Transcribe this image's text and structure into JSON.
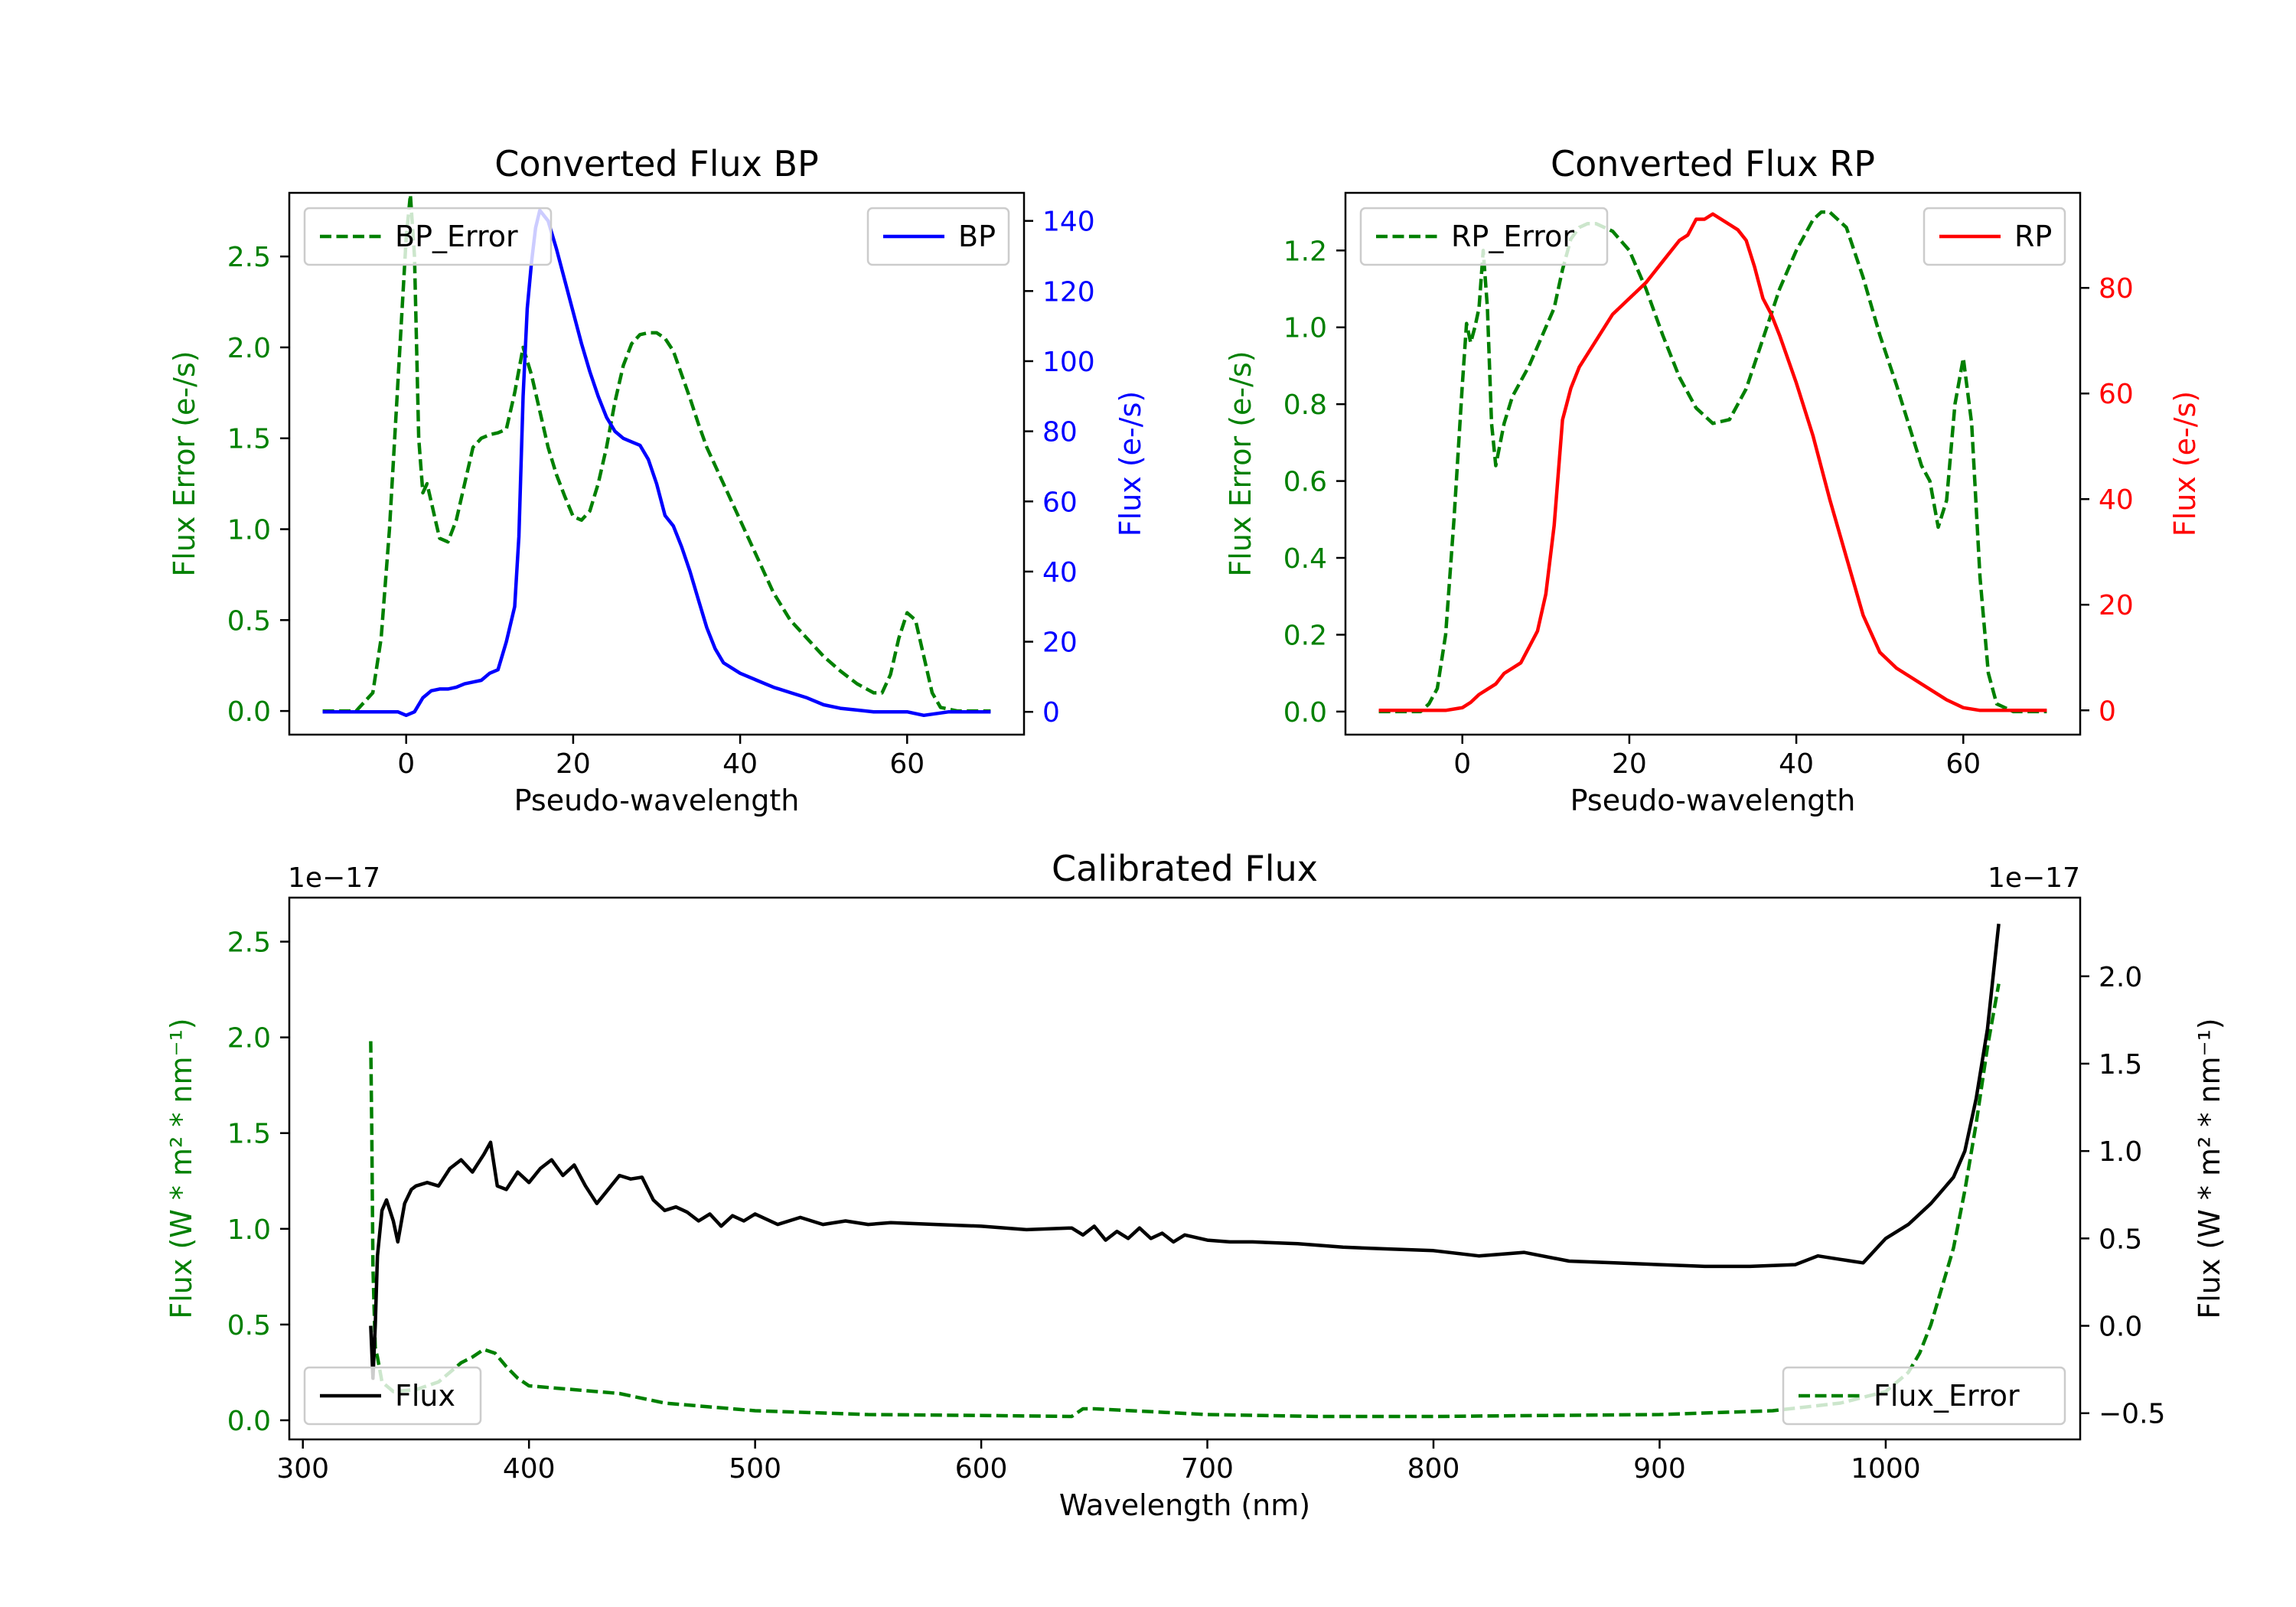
{
  "chart_data": [
    {
      "id": "bp",
      "type": "line",
      "title": "Converted Flux BP",
      "xlabel": "Pseudo-wavelength",
      "ylabel_left": "Flux Error (e-/s)",
      "ylabel_right": "Flux (e-/s)",
      "xlim": [
        -14,
        74
      ],
      "ylim_left": [
        -0.13,
        2.85
      ],
      "ylim_right": [
        -6.5,
        148
      ],
      "xticks": [
        0,
        20,
        40,
        60
      ],
      "yticks_left": [
        "0.0",
        "0.5",
        "1.0",
        "1.5",
        "2.0",
        "2.5"
      ],
      "yticks_right": [
        "0",
        "20",
        "40",
        "60",
        "80",
        "100",
        "120",
        "140"
      ],
      "colors": {
        "left_axis": "#008000",
        "right_axis": "#0000ff"
      },
      "series": [
        {
          "name": "BP_Error",
          "axis": "left",
          "color": "#008000",
          "style": "dashed",
          "x": [
            -10,
            -6,
            -4,
            -3,
            -2,
            -1,
            0,
            0.5,
            1,
            1.5,
            2,
            2.5,
            3,
            3.5,
            4,
            5,
            6,
            7,
            8,
            9,
            10,
            11,
            12,
            13,
            14,
            15,
            16,
            17,
            18,
            19,
            20,
            21,
            22,
            23,
            24,
            25,
            26,
            27,
            28,
            29,
            30,
            31,
            32,
            33,
            34,
            35,
            36,
            38,
            40,
            42,
            44,
            46,
            48,
            50,
            52,
            54,
            56,
            57,
            58,
            59,
            60,
            61,
            62,
            63,
            64,
            66,
            70
          ],
          "values": [
            0.0,
            0.0,
            0.1,
            0.4,
            1.0,
            1.8,
            2.6,
            2.84,
            2.5,
            1.5,
            1.2,
            1.25,
            1.15,
            1.05,
            0.95,
            0.93,
            1.05,
            1.25,
            1.45,
            1.5,
            1.52,
            1.53,
            1.55,
            1.75,
            2.0,
            1.85,
            1.65,
            1.45,
            1.3,
            1.18,
            1.07,
            1.05,
            1.1,
            1.25,
            1.45,
            1.7,
            1.9,
            2.02,
            2.07,
            2.08,
            2.08,
            2.05,
            1.98,
            1.85,
            1.72,
            1.58,
            1.45,
            1.25,
            1.05,
            0.85,
            0.65,
            0.5,
            0.4,
            0.3,
            0.22,
            0.15,
            0.1,
            0.1,
            0.2,
            0.4,
            0.54,
            0.5,
            0.3,
            0.1,
            0.02,
            0.0,
            0.0
          ]
        },
        {
          "name": "BP",
          "axis": "right",
          "color": "#0000ff",
          "style": "solid",
          "x": [
            -10,
            -6,
            -3,
            -1,
            0,
            1,
            2,
            3,
            4,
            5,
            6,
            7,
            8,
            9,
            10,
            11,
            12,
            13,
            13.5,
            14,
            14.5,
            15,
            15.5,
            16,
            17,
            18,
            19,
            20,
            21,
            22,
            23,
            24,
            25,
            26,
            27,
            28,
            29,
            30,
            31,
            32,
            33,
            34,
            35,
            36,
            37,
            38,
            40,
            42,
            44,
            46,
            48,
            50,
            52,
            54,
            56,
            58,
            60,
            62,
            65,
            70
          ],
          "values": [
            0,
            0,
            0,
            0,
            -1,
            0,
            4,
            6,
            6.5,
            6.5,
            7,
            8,
            8.5,
            9,
            11,
            12,
            20,
            30,
            50,
            90,
            115,
            128,
            138,
            143,
            140,
            132,
            123,
            114,
            105,
            97,
            90,
            84,
            80,
            78,
            77,
            76,
            72,
            65,
            56,
            53,
            47,
            40,
            32,
            24,
            18,
            14,
            11,
            9,
            7,
            5.5,
            4,
            2,
            1,
            0.5,
            0,
            0,
            0,
            -1,
            0,
            0
          ]
        }
      ],
      "legends": [
        {
          "name": "BP_Error",
          "location": "upper left"
        },
        {
          "name": "BP",
          "location": "upper right"
        }
      ]
    },
    {
      "id": "rp",
      "type": "line",
      "title": "Converted Flux RP",
      "xlabel": "Pseudo-wavelength",
      "ylabel_left": "Flux Error (e-/s)",
      "ylabel_right": "Flux (e-/s)",
      "xlim": [
        -14,
        74
      ],
      "ylim_left": [
        -0.06,
        1.35
      ],
      "ylim_right": [
        -4.6,
        98
      ],
      "xticks": [
        0,
        20,
        40,
        60
      ],
      "yticks_left": [
        "0.0",
        "0.2",
        "0.4",
        "0.6",
        "0.8",
        "1.0",
        "1.2"
      ],
      "yticks_right": [
        "0",
        "20",
        "40",
        "60",
        "80"
      ],
      "colors": {
        "left_axis": "#008000",
        "right_axis": "#ff0000"
      },
      "series": [
        {
          "name": "RP_Error",
          "axis": "left",
          "color": "#008000",
          "style": "dashed",
          "x": [
            -10,
            -5,
            -4,
            -3,
            -2,
            -1,
            0,
            0.5,
            1,
            1.5,
            2,
            2.5,
            3,
            3.5,
            4,
            5,
            6,
            7,
            8,
            9,
            10,
            11,
            12,
            13,
            14,
            15,
            16,
            17,
            18,
            20,
            22,
            24,
            26,
            28,
            30,
            32,
            34,
            36,
            38,
            40,
            42,
            43,
            44,
            46,
            48,
            50,
            52,
            54,
            55,
            56,
            57,
            58,
            59,
            60,
            61,
            62,
            63,
            64,
            66,
            70
          ],
          "values": [
            0.0,
            0.0,
            0.02,
            0.06,
            0.2,
            0.5,
            0.85,
            1.01,
            0.96,
            1.0,
            1.05,
            1.2,
            1.05,
            0.75,
            0.64,
            0.75,
            0.82,
            0.86,
            0.9,
            0.95,
            1.0,
            1.05,
            1.15,
            1.23,
            1.26,
            1.27,
            1.27,
            1.26,
            1.25,
            1.2,
            1.1,
            0.98,
            0.87,
            0.79,
            0.75,
            0.76,
            0.84,
            0.97,
            1.1,
            1.2,
            1.28,
            1.3,
            1.3,
            1.26,
            1.13,
            0.98,
            0.85,
            0.71,
            0.64,
            0.6,
            0.48,
            0.55,
            0.8,
            0.92,
            0.75,
            0.35,
            0.1,
            0.02,
            0.0,
            0.0
          ]
        },
        {
          "name": "RP",
          "axis": "right",
          "color": "#ff0000",
          "style": "solid",
          "x": [
            -10,
            -5,
            -2,
            0,
            1,
            2,
            3,
            4,
            5,
            6,
            7,
            8,
            9,
            10,
            11,
            12,
            12.5,
            13,
            14,
            16,
            18,
            20,
            22,
            24,
            26,
            27,
            28,
            29,
            30,
            31,
            32,
            33,
            34,
            35,
            36,
            37,
            38,
            40,
            42,
            44,
            46,
            48,
            50,
            52,
            54,
            56,
            58,
            60,
            62,
            65,
            70
          ],
          "values": [
            0,
            0,
            0,
            0.5,
            1.5,
            3,
            4,
            5,
            7,
            8,
            9,
            12,
            15,
            22,
            35,
            55,
            58,
            61,
            65,
            70,
            75,
            78,
            81,
            85,
            89,
            90,
            93,
            93,
            94,
            93,
            92,
            91,
            89,
            84,
            78,
            75,
            71,
            62,
            52,
            40,
            29,
            18,
            11,
            8,
            6,
            4,
            2,
            0.5,
            0,
            0,
            0
          ]
        }
      ],
      "legends": [
        {
          "name": "RP_Error",
          "location": "upper left"
        },
        {
          "name": "RP",
          "location": "upper right"
        }
      ]
    },
    {
      "id": "cal",
      "type": "line",
      "title": "Calibrated Flux",
      "xlabel": "Wavelength (nm)",
      "ylabel_left": "Flux (W * m² * nm⁻¹)",
      "ylabel_right": "Flux (W * m² * nm⁻¹)",
      "offset_left": "1e−17",
      "offset_right": "1e−17",
      "xlim": [
        294,
        1086
      ],
      "ylim_left": [
        -0.1,
        2.73
      ],
      "ylim_right": [
        -0.65,
        2.45
      ],
      "xticks": [
        300,
        400,
        500,
        600,
        700,
        800,
        900,
        1000
      ],
      "yticks_left": [
        "0.0",
        "0.5",
        "1.0",
        "1.5",
        "2.0",
        "2.5"
      ],
      "yticks_right": [
        "−0.5",
        "0.0",
        "0.5",
        "1.0",
        "1.5",
        "2.0"
      ],
      "colors": {
        "left_axis": "#008000",
        "right_axis": "#000000"
      },
      "series": [
        {
          "name": "Flux_Error",
          "axis": "left",
          "color": "#008000",
          "style": "dashed",
          "x": [
            330,
            330.5,
            331,
            332,
            333,
            335,
            340,
            350,
            360,
            370,
            375,
            380,
            385,
            390,
            395,
            400,
            420,
            440,
            460,
            500,
            550,
            600,
            640,
            645,
            650,
            700,
            750,
            800,
            850,
            900,
            950,
            980,
            1000,
            1010,
            1015,
            1020,
            1025,
            1030,
            1035,
            1040,
            1045,
            1050
          ],
          "values": [
            1.98,
            1.5,
            0.8,
            0.38,
            0.33,
            0.2,
            0.15,
            0.16,
            0.2,
            0.3,
            0.33,
            0.37,
            0.35,
            0.28,
            0.22,
            0.18,
            0.16,
            0.14,
            0.09,
            0.05,
            0.03,
            0.025,
            0.02,
            0.06,
            0.06,
            0.03,
            0.02,
            0.02,
            0.025,
            0.03,
            0.05,
            0.09,
            0.15,
            0.25,
            0.35,
            0.5,
            0.7,
            0.9,
            1.2,
            1.55,
            1.95,
            2.28
          ]
        },
        {
          "name": "Flux",
          "axis": "right",
          "color": "#000000",
          "style": "solid",
          "x": [
            330,
            331,
            332,
            333,
            335,
            337,
            340,
            342,
            345,
            348,
            350,
            355,
            360,
            365,
            370,
            375,
            380,
            383,
            386,
            390,
            395,
            400,
            405,
            410,
            415,
            420,
            425,
            430,
            435,
            440,
            445,
            450,
            455,
            460,
            465,
            470,
            475,
            480,
            485,
            490,
            495,
            500,
            510,
            520,
            530,
            540,
            550,
            560,
            580,
            600,
            620,
            640,
            645,
            650,
            655,
            660,
            665,
            670,
            675,
            680,
            685,
            690,
            700,
            710,
            720,
            740,
            760,
            780,
            800,
            820,
            840,
            860,
            880,
            900,
            920,
            940,
            960,
            970,
            980,
            990,
            1000,
            1010,
            1020,
            1030,
            1035,
            1040,
            1045,
            1050
          ],
          "values": [
            0.0,
            -0.3,
            0.0,
            0.4,
            0.66,
            0.72,
            0.6,
            0.48,
            0.7,
            0.78,
            0.8,
            0.82,
            0.8,
            0.9,
            0.95,
            0.88,
            0.98,
            1.05,
            0.8,
            0.78,
            0.88,
            0.82,
            0.9,
            0.95,
            0.86,
            0.92,
            0.8,
            0.7,
            0.78,
            0.86,
            0.84,
            0.85,
            0.72,
            0.66,
            0.68,
            0.65,
            0.6,
            0.64,
            0.57,
            0.63,
            0.6,
            0.64,
            0.58,
            0.62,
            0.58,
            0.6,
            0.58,
            0.59,
            0.58,
            0.57,
            0.55,
            0.56,
            0.52,
            0.57,
            0.49,
            0.54,
            0.5,
            0.56,
            0.5,
            0.53,
            0.48,
            0.52,
            0.49,
            0.48,
            0.48,
            0.47,
            0.45,
            0.44,
            0.43,
            0.4,
            0.42,
            0.37,
            0.36,
            0.35,
            0.34,
            0.34,
            0.35,
            0.4,
            0.38,
            0.36,
            0.5,
            0.58,
            0.7,
            0.85,
            1.0,
            1.3,
            1.7,
            2.3
          ]
        }
      ],
      "legends": [
        {
          "name": "Flux",
          "location": "lower left"
        },
        {
          "name": "Flux_Error",
          "location": "lower right"
        }
      ]
    }
  ]
}
